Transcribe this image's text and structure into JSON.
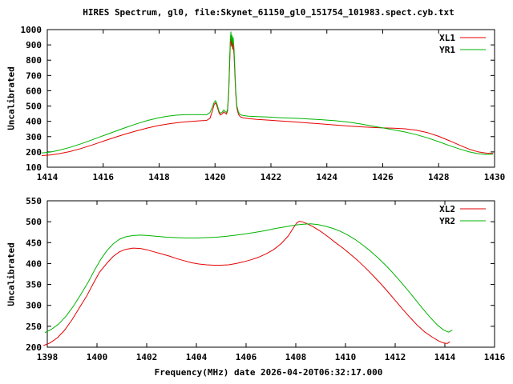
{
  "figure": {
    "title": "HIRES Spectrum, gl0, file:Skynet_61150_gl0_151754_101983.spect.cyb.txt",
    "background": "#ffffff",
    "axis_color": "#000000"
  },
  "chart_data": [
    {
      "id": "top-spectrum",
      "type": "line",
      "ylabel": "Uncalibrated",
      "xlabel": "",
      "xlim": [
        1414,
        1430
      ],
      "ylim": [
        100,
        1000
      ],
      "xticks": [
        1414,
        1416,
        1418,
        1420,
        1422,
        1424,
        1426,
        1428,
        1430
      ],
      "yticks": [
        100,
        200,
        300,
        400,
        500,
        600,
        700,
        800,
        900,
        1000
      ],
      "grid": false,
      "legend_position": "top-right-inside",
      "series": [
        {
          "name": "XL1",
          "color": "#e60000",
          "points": [
            [
              1413.8,
              176
            ],
            [
              1414.1,
              180
            ],
            [
              1414.4,
              188
            ],
            [
              1414.8,
              202
            ],
            [
              1415.2,
              222
            ],
            [
              1415.6,
              245
            ],
            [
              1416.0,
              270
            ],
            [
              1416.4,
              294
            ],
            [
              1416.8,
              317
            ],
            [
              1417.2,
              338
            ],
            [
              1417.6,
              357
            ],
            [
              1418.0,
              373
            ],
            [
              1418.4,
              385
            ],
            [
              1418.8,
              394
            ],
            [
              1419.1,
              399
            ],
            [
              1419.4,
              403
            ],
            [
              1419.7,
              406
            ],
            [
              1419.82,
              420
            ],
            [
              1419.9,
              465
            ],
            [
              1419.97,
              510
            ],
            [
              1420.02,
              522
            ],
            [
              1420.08,
              496
            ],
            [
              1420.14,
              458
            ],
            [
              1420.19,
              441
            ],
            [
              1420.26,
              449
            ],
            [
              1420.31,
              462
            ],
            [
              1420.36,
              454
            ],
            [
              1420.41,
              447
            ],
            [
              1420.45,
              468
            ],
            [
              1420.49,
              580
            ],
            [
              1420.52,
              760
            ],
            [
              1420.55,
              915
            ],
            [
              1420.57,
              938
            ],
            [
              1420.59,
              892
            ],
            [
              1420.61,
              928
            ],
            [
              1420.63,
              872
            ],
            [
              1420.65,
              908
            ],
            [
              1420.68,
              830
            ],
            [
              1420.71,
              710
            ],
            [
              1420.74,
              580
            ],
            [
              1420.78,
              487
            ],
            [
              1420.84,
              446
            ],
            [
              1420.9,
              430
            ],
            [
              1421.0,
              423
            ],
            [
              1421.2,
              418
            ],
            [
              1421.5,
              413
            ],
            [
              1421.9,
              408
            ],
            [
              1422.3,
              403
            ],
            [
              1422.8,
              397
            ],
            [
              1423.3,
              390
            ],
            [
              1423.8,
              383
            ],
            [
              1424.3,
              376
            ],
            [
              1424.8,
              369
            ],
            [
              1425.2,
              364
            ],
            [
              1425.6,
              360
            ],
            [
              1426.0,
              357
            ],
            [
              1426.4,
              355
            ],
            [
              1426.8,
              351
            ],
            [
              1427.2,
              342
            ],
            [
              1427.6,
              326
            ],
            [
              1428.0,
              302
            ],
            [
              1428.4,
              272
            ],
            [
              1428.8,
              240
            ],
            [
              1429.1,
              217
            ],
            [
              1429.4,
              201
            ],
            [
              1429.7,
              192
            ],
            [
              1429.95,
              190
            ]
          ]
        },
        {
          "name": "YR1",
          "color": "#00b400",
          "points": [
            [
              1413.8,
              193
            ],
            [
              1414.1,
              199
            ],
            [
              1414.4,
              210
            ],
            [
              1414.8,
              229
            ],
            [
              1415.2,
              253
            ],
            [
              1415.6,
              279
            ],
            [
              1416.0,
              306
            ],
            [
              1416.4,
              333
            ],
            [
              1416.8,
              359
            ],
            [
              1417.2,
              384
            ],
            [
              1417.6,
              406
            ],
            [
              1418.0,
              424
            ],
            [
              1418.3,
              434
            ],
            [
              1418.6,
              440
            ],
            [
              1418.9,
              443
            ],
            [
              1419.2,
              444
            ],
            [
              1419.5,
              443
            ],
            [
              1419.7,
              443
            ],
            [
              1419.82,
              458
            ],
            [
              1419.9,
              492
            ],
            [
              1419.97,
              525
            ],
            [
              1420.02,
              536
            ],
            [
              1420.08,
              508
            ],
            [
              1420.14,
              468
            ],
            [
              1420.19,
              452
            ],
            [
              1420.26,
              461
            ],
            [
              1420.31,
              474
            ],
            [
              1420.36,
              466
            ],
            [
              1420.41,
              457
            ],
            [
              1420.45,
              480
            ],
            [
              1420.49,
              600
            ],
            [
              1420.52,
              790
            ],
            [
              1420.55,
              945
            ],
            [
              1420.57,
              985
            ],
            [
              1420.59,
              925
            ],
            [
              1420.61,
              962
            ],
            [
              1420.63,
              905
            ],
            [
              1420.65,
              948
            ],
            [
              1420.68,
              868
            ],
            [
              1420.71,
              745
            ],
            [
              1420.74,
              605
            ],
            [
              1420.78,
              502
            ],
            [
              1420.84,
              460
            ],
            [
              1420.9,
              444
            ],
            [
              1421.0,
              438
            ],
            [
              1421.2,
              434
            ],
            [
              1421.5,
              431
            ],
            [
              1421.9,
              428
            ],
            [
              1422.3,
              424
            ],
            [
              1422.8,
              420
            ],
            [
              1423.3,
              416
            ],
            [
              1423.8,
              411
            ],
            [
              1424.3,
              404
            ],
            [
              1424.8,
              394
            ],
            [
              1425.2,
              383
            ],
            [
              1425.6,
              370
            ],
            [
              1426.0,
              357
            ],
            [
              1426.4,
              344
            ],
            [
              1426.8,
              330
            ],
            [
              1427.2,
              313
            ],
            [
              1427.6,
              292
            ],
            [
              1428.0,
              267
            ],
            [
              1428.4,
              240
            ],
            [
              1428.8,
              216
            ],
            [
              1429.1,
              200
            ],
            [
              1429.4,
              189
            ],
            [
              1429.7,
              183
            ],
            [
              1429.95,
              185
            ]
          ]
        }
      ]
    },
    {
      "id": "bottom-spectrum",
      "type": "line",
      "ylabel": "Uncalibrated",
      "xlabel": "Frequency(MHz) date 2026-04-20T06:32:17.000",
      "xlim": [
        1398,
        1416
      ],
      "ylim": [
        200,
        550
      ],
      "xticks": [
        1398,
        1400,
        1402,
        1404,
        1406,
        1408,
        1410,
        1412,
        1414,
        1416
      ],
      "yticks": [
        200,
        250,
        300,
        350,
        400,
        450,
        500,
        550
      ],
      "grid": false,
      "legend_position": "top-right-inside",
      "series": [
        {
          "name": "XL2",
          "color": "#e60000",
          "points": [
            [
              1397.85,
              204
            ],
            [
              1398.1,
              210
            ],
            [
              1398.4,
              222
            ],
            [
              1398.7,
              241
            ],
            [
              1399.0,
              266
            ],
            [
              1399.3,
              295
            ],
            [
              1399.6,
              324
            ],
            [
              1399.85,
              352
            ],
            [
              1400.1,
              379
            ],
            [
              1400.4,
              401
            ],
            [
              1400.65,
              417
            ],
            [
              1400.9,
              428
            ],
            [
              1401.15,
              434
            ],
            [
              1401.45,
              437
            ],
            [
              1401.75,
              436
            ],
            [
              1402.0,
              433
            ],
            [
              1402.3,
              428
            ],
            [
              1402.6,
              423
            ],
            [
              1402.9,
              418
            ],
            [
              1403.2,
              412
            ],
            [
              1403.5,
              407
            ],
            [
              1403.8,
              402
            ],
            [
              1404.1,
              399
            ],
            [
              1404.4,
              397
            ],
            [
              1404.7,
              396
            ],
            [
              1405.0,
              396
            ],
            [
              1405.3,
              397
            ],
            [
              1405.6,
              400
            ],
            [
              1405.9,
              404
            ],
            [
              1406.2,
              409
            ],
            [
              1406.5,
              415
            ],
            [
              1406.8,
              423
            ],
            [
              1407.1,
              433
            ],
            [
              1407.4,
              447
            ],
            [
              1407.7,
              466
            ],
            [
              1407.9,
              485
            ],
            [
              1408.05,
              498
            ],
            [
              1408.15,
              501
            ],
            [
              1408.3,
              499
            ],
            [
              1408.5,
              494
            ],
            [
              1408.7,
              488
            ],
            [
              1409.0,
              477
            ],
            [
              1409.3,
              464
            ],
            [
              1409.6,
              450
            ],
            [
              1409.9,
              437
            ],
            [
              1410.2,
              422
            ],
            [
              1410.5,
              407
            ],
            [
              1410.8,
              390
            ],
            [
              1411.1,
              372
            ],
            [
              1411.4,
              353
            ],
            [
              1411.7,
              333
            ],
            [
              1412.0,
              312
            ],
            [
              1412.3,
              291
            ],
            [
              1412.6,
              271
            ],
            [
              1412.9,
              252
            ],
            [
              1413.2,
              236
            ],
            [
              1413.5,
              224
            ],
            [
              1413.75,
              215
            ],
            [
              1413.95,
              210
            ],
            [
              1414.1,
              209
            ],
            [
              1414.2,
              213
            ]
          ]
        },
        {
          "name": "YR2",
          "color": "#00b400",
          "points": [
            [
              1397.9,
              235
            ],
            [
              1398.15,
              242
            ],
            [
              1398.45,
              255
            ],
            [
              1398.75,
              274
            ],
            [
              1399.05,
              298
            ],
            [
              1399.35,
              326
            ],
            [
              1399.65,
              356
            ],
            [
              1399.9,
              384
            ],
            [
              1400.15,
              410
            ],
            [
              1400.4,
              431
            ],
            [
              1400.65,
              447
            ],
            [
              1400.9,
              458
            ],
            [
              1401.15,
              464
            ],
            [
              1401.45,
              467
            ],
            [
              1401.75,
              468
            ],
            [
              1402.05,
              467
            ],
            [
              1402.4,
              465
            ],
            [
              1402.8,
              463
            ],
            [
              1403.2,
              462
            ],
            [
              1403.6,
              461
            ],
            [
              1404.0,
              461
            ],
            [
              1404.4,
              462
            ],
            [
              1404.8,
              463
            ],
            [
              1405.2,
              465
            ],
            [
              1405.6,
              468
            ],
            [
              1406.0,
              471
            ],
            [
              1406.4,
              475
            ],
            [
              1406.8,
              479
            ],
            [
              1407.2,
              484
            ],
            [
              1407.6,
              488
            ],
            [
              1408.0,
              492
            ],
            [
              1408.3,
              494
            ],
            [
              1408.6,
              495
            ],
            [
              1408.9,
              493
            ],
            [
              1409.2,
              489
            ],
            [
              1409.5,
              484
            ],
            [
              1409.8,
              477
            ],
            [
              1410.1,
              468
            ],
            [
              1410.4,
              457
            ],
            [
              1410.7,
              444
            ],
            [
              1411.0,
              430
            ],
            [
              1411.3,
              414
            ],
            [
              1411.6,
              397
            ],
            [
              1411.9,
              378
            ],
            [
              1412.2,
              358
            ],
            [
              1412.5,
              337
            ],
            [
              1412.8,
              315
            ],
            [
              1413.1,
              293
            ],
            [
              1413.4,
              272
            ],
            [
              1413.7,
              253
            ],
            [
              1413.95,
              241
            ],
            [
              1414.15,
              236
            ],
            [
              1414.3,
              241
            ]
          ]
        }
      ]
    }
  ]
}
